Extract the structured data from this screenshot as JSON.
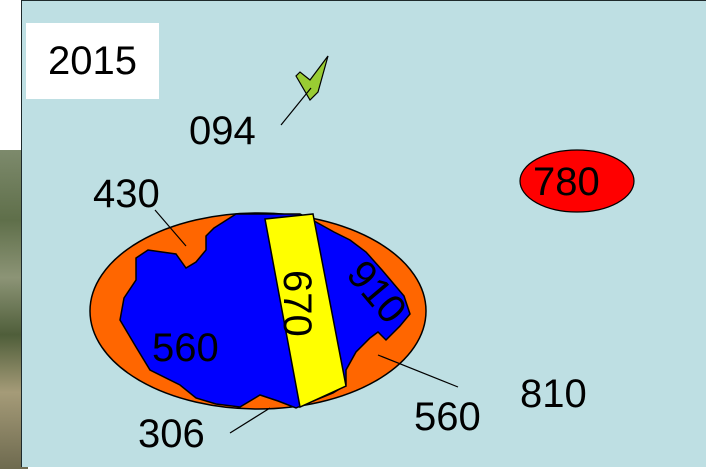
{
  "year": "2015",
  "parcels": {
    "p094": "094",
    "p430": "430",
    "p780": "780",
    "p670": "670",
    "p910": "910",
    "p560_inner": "560",
    "p560_outer": "560",
    "p306": "306",
    "p810": "810"
  },
  "colors": {
    "background": "#bedfe3",
    "orange": "#ff6600",
    "blue": "#0000ff",
    "yellow": "#ffff00",
    "red": "#ff0000",
    "green": "#99cc33"
  }
}
